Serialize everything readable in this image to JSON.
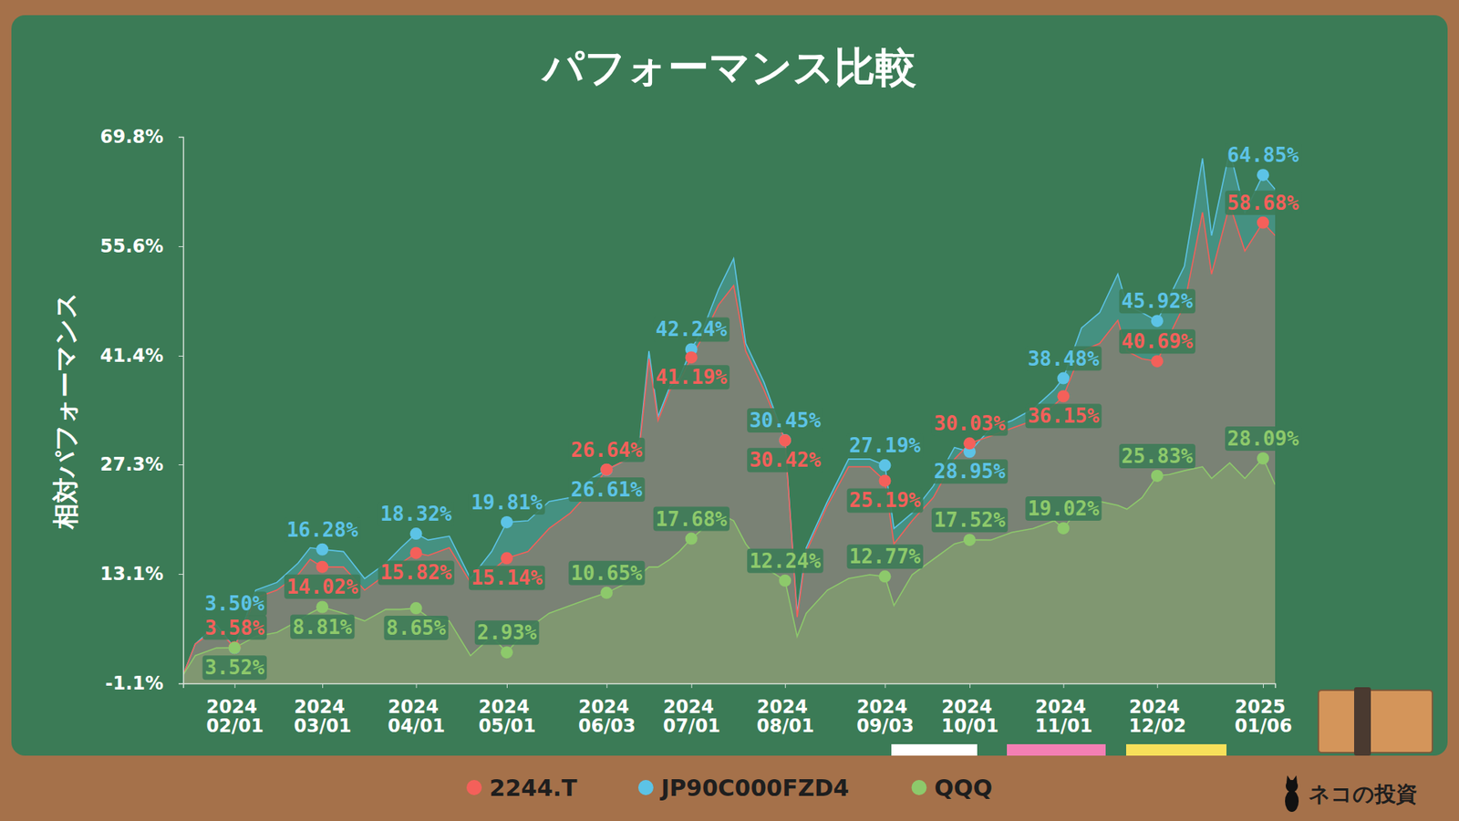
{
  "chart_data": {
    "type": "area",
    "title": "パフォーマンス比較",
    "y_label": "相対パフォーマンス",
    "credit": "ネコの投資",
    "x": [
      "2024-01-15",
      "2024-01-19",
      "2024-01-26",
      "2024-02-01",
      "2024-02-08",
      "2024-02-15",
      "2024-02-22",
      "2024-02-26",
      "2024-03-01",
      "2024-03-08",
      "2024-03-15",
      "2024-03-22",
      "2024-03-27",
      "2024-04-01",
      "2024-04-05",
      "2024-04-12",
      "2024-04-19",
      "2024-04-26",
      "2024-05-01",
      "2024-05-08",
      "2024-05-15",
      "2024-05-22",
      "2024-05-29",
      "2024-06-03",
      "2024-06-10",
      "2024-06-14",
      "2024-06-17",
      "2024-06-20",
      "2024-06-24",
      "2024-06-27",
      "2024-07-01",
      "2024-07-05",
      "2024-07-10",
      "2024-07-15",
      "2024-07-19",
      "2024-07-25",
      "2024-08-01",
      "2024-08-05",
      "2024-08-08",
      "2024-08-15",
      "2024-08-22",
      "2024-08-29",
      "2024-09-03",
      "2024-09-06",
      "2024-09-12",
      "2024-09-19",
      "2024-09-26",
      "2024-10-01",
      "2024-10-08",
      "2024-10-15",
      "2024-10-22",
      "2024-10-29",
      "2024-11-01",
      "2024-11-07",
      "2024-11-13",
      "2024-11-19",
      "2024-11-22",
      "2024-11-27",
      "2024-12-02",
      "2024-12-06",
      "2024-12-11",
      "2024-12-17",
      "2024-12-20",
      "2024-12-26",
      "2024-12-31",
      "2025-01-06",
      "2025-01-10"
    ],
    "xlim": [
      "2024-01-15",
      "2025-01-10"
    ],
    "xticks": [
      {
        "value": "2024-02-01",
        "label": "2024\n02/01"
      },
      {
        "value": "2024-03-01",
        "label": "2024\n03/01"
      },
      {
        "value": "2024-04-01",
        "label": "2024\n04/01"
      },
      {
        "value": "2024-05-01",
        "label": "2024\n05/01"
      },
      {
        "value": "2024-06-03",
        "label": "2024\n06/03"
      },
      {
        "value": "2024-07-01",
        "label": "2024\n07/01"
      },
      {
        "value": "2024-08-01",
        "label": "2024\n08/01"
      },
      {
        "value": "2024-09-03",
        "label": "2024\n09/03"
      },
      {
        "value": "2024-10-01",
        "label": "2024\n10/01"
      },
      {
        "value": "2024-11-01",
        "label": "2024\n11/01"
      },
      {
        "value": "2024-12-02",
        "label": "2024\n12/02"
      },
      {
        "value": "2025-01-06",
        "label": "2025\n01/06"
      }
    ],
    "ylim": [
      -1.1,
      69.8
    ],
    "yticks": [
      {
        "value": -1.1,
        "label": "-1.1%"
      },
      {
        "value": 13.1,
        "label": "13.1%"
      },
      {
        "value": 27.3,
        "label": "27.3%"
      },
      {
        "value": 41.4,
        "label": "41.4%"
      },
      {
        "value": 55.6,
        "label": "55.6%"
      },
      {
        "value": 69.8,
        "label": "69.8%"
      }
    ],
    "grid": false,
    "legend": "bottom",
    "data_labels": true,
    "marker": "circle",
    "series": [
      {
        "name": "JP90C000FZD4",
        "color": "#5cc3e6",
        "values": [
          0,
          4,
          6.5,
          3.5,
          11,
          12,
          14.5,
          16.5,
          16.28,
          16,
          12.5,
          14.5,
          16.5,
          18.32,
          17.5,
          18,
          12.5,
          16,
          19.81,
          20,
          22.5,
          23,
          25.5,
          26.61,
          28,
          30.5,
          42,
          33.5,
          37.5,
          38.5,
          42.24,
          45,
          50,
          54,
          43,
          38,
          30.45,
          8,
          16.5,
          22.5,
          28,
          28,
          27.19,
          19,
          21,
          24.5,
          29.5,
          28.95,
          32,
          33,
          34.5,
          37,
          38.48,
          45,
          47,
          52,
          48,
          47,
          45.92,
          49,
          53,
          67,
          57,
          68,
          60,
          64.85,
          63
        ],
        "value_labels": [
          null,
          null,
          null,
          "3.50%",
          null,
          null,
          null,
          null,
          "16.28%",
          null,
          null,
          null,
          null,
          "18.32%",
          null,
          null,
          null,
          null,
          "19.81%",
          null,
          null,
          null,
          null,
          "26.61%",
          null,
          null,
          null,
          null,
          null,
          null,
          "42.24%",
          null,
          null,
          null,
          null,
          null,
          "30.45%",
          null,
          null,
          null,
          null,
          null,
          "27.19%",
          null,
          null,
          null,
          null,
          "28.95%",
          null,
          null,
          null,
          null,
          "38.48%",
          null,
          null,
          null,
          null,
          null,
          "45.92%",
          null,
          null,
          null,
          null,
          null,
          null,
          "64.85%",
          null
        ]
      },
      {
        "name": "2244.T",
        "color": "#f4605a",
        "values": [
          0,
          4,
          6,
          3.58,
          10,
          11,
          13,
          15,
          14.02,
          14,
          11,
          13,
          14.5,
          15.82,
          15.5,
          16.5,
          12,
          13.5,
          15.14,
          16,
          19,
          21,
          24,
          26.64,
          28,
          30,
          41,
          33,
          37,
          38,
          41.19,
          44,
          48,
          50.5,
          42,
          37,
          30.42,
          7.5,
          16,
          22,
          27,
          27,
          25.19,
          17,
          20,
          23,
          28,
          30.03,
          31,
          32,
          33,
          35,
          36.15,
          42,
          43,
          46,
          42,
          41,
          40.69,
          44,
          48,
          60,
          52,
          61,
          55,
          58.68,
          57
        ],
        "value_labels": [
          null,
          null,
          null,
          "3.58%",
          null,
          null,
          null,
          null,
          "14.02%",
          null,
          null,
          null,
          null,
          "15.82%",
          null,
          null,
          null,
          null,
          "15.14%",
          null,
          null,
          null,
          null,
          "26.64%",
          null,
          null,
          null,
          null,
          null,
          null,
          "41.19%",
          null,
          null,
          null,
          null,
          null,
          "30.42%",
          null,
          null,
          null,
          null,
          null,
          "25.19%",
          null,
          null,
          null,
          null,
          "30.03%",
          null,
          null,
          null,
          null,
          "36.15%",
          null,
          null,
          null,
          null,
          null,
          "40.69%",
          null,
          null,
          null,
          null,
          null,
          null,
          "58.68%",
          null
        ]
      },
      {
        "name": "QQQ",
        "color": "#8dc96b",
        "values": [
          0,
          2.5,
          3.5,
          3.52,
          5,
          5.5,
          7,
          8,
          8.81,
          8,
          7,
          8.5,
          8.5,
          8.65,
          7.5,
          7,
          2.5,
          5,
          2.93,
          6,
          8,
          9,
          10,
          10.65,
          12,
          13,
          14,
          14,
          15,
          16,
          17.68,
          19,
          21,
          20,
          17,
          14,
          12.24,
          5,
          8,
          11,
          12.5,
          13,
          12.77,
          9,
          13,
          15,
          17,
          17.52,
          17.5,
          18.5,
          19,
          20,
          19.02,
          22,
          22.5,
          22,
          21.5,
          23,
          25.83,
          26,
          26.5,
          27,
          25.5,
          27.5,
          25.5,
          28.09,
          24.7
        ],
        "value_labels": [
          null,
          null,
          null,
          "3.52%",
          null,
          null,
          null,
          null,
          "8.81%",
          null,
          null,
          null,
          null,
          "8.65%",
          null,
          null,
          null,
          null,
          "2.93%",
          null,
          null,
          null,
          null,
          "10.65%",
          null,
          null,
          null,
          null,
          null,
          null,
          "17.68%",
          null,
          null,
          null,
          null,
          null,
          "12.24%",
          null,
          null,
          null,
          null,
          null,
          "12.77%",
          null,
          null,
          null,
          null,
          "17.52%",
          null,
          null,
          null,
          null,
          "19.02%",
          null,
          null,
          null,
          null,
          null,
          "25.83%",
          null,
          null,
          null,
          null,
          null,
          null,
          "28.09%",
          null
        ]
      }
    ]
  }
}
